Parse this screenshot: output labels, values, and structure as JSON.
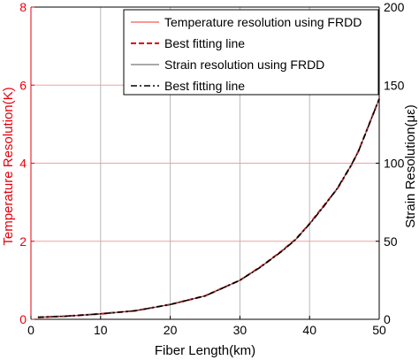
{
  "chart_data": {
    "type": "line",
    "title": "",
    "xlabel": "Fiber Length(km)",
    "ylabel_left": "Temperature Resolution(K)",
    "ylabel_right": "Strain Resolution(με)",
    "xlim": [
      0,
      50
    ],
    "ylim_left": [
      0,
      8
    ],
    "ylim_right": [
      0,
      200
    ],
    "x_ticks": [
      "0",
      "10",
      "20",
      "30",
      "40",
      "50"
    ],
    "y_ticks_left": [
      "0",
      "2",
      "4",
      "6",
      "8"
    ],
    "y_ticks_right": [
      "0",
      "50",
      "100",
      "150",
      "200"
    ],
    "x_tick_values": [
      0,
      10,
      20,
      30,
      40,
      50
    ],
    "y_tick_values_left": [
      0,
      2,
      4,
      6,
      8
    ],
    "y_tick_values_right": [
      0,
      50,
      100,
      150,
      200
    ],
    "grid": true,
    "legend_position": "top-right",
    "colors": {
      "left_axis": "#e8000b",
      "right_axis": "#000000",
      "temp_line": "#f03030",
      "temp_fit": "#dd0000",
      "strain_line": "#555555",
      "strain_fit": "#000000",
      "grid_red": "#f2a0a0",
      "grid_gray": "#b8b8b8"
    },
    "series": [
      {
        "name": "Temperature resolution using FRDD",
        "axis": "left",
        "style": "solid",
        "x": [
          1,
          5,
          10,
          15,
          20,
          25,
          30,
          33,
          36,
          38,
          40,
          42,
          44,
          46,
          47,
          48,
          49,
          50
        ],
        "y": [
          0.05,
          0.08,
          0.14,
          0.22,
          0.38,
          0.6,
          1.0,
          1.35,
          1.75,
          2.05,
          2.45,
          2.9,
          3.35,
          3.95,
          4.3,
          4.75,
          5.2,
          5.65
        ]
      },
      {
        "name": "Best fitting line",
        "axis": "left",
        "style": "dashed",
        "x": [
          1,
          5,
          10,
          15,
          20,
          25,
          30,
          33,
          36,
          38,
          40,
          42,
          44,
          46,
          47,
          48,
          49,
          50
        ],
        "y": [
          0.05,
          0.08,
          0.14,
          0.22,
          0.38,
          0.6,
          1.0,
          1.35,
          1.75,
          2.05,
          2.45,
          2.9,
          3.35,
          3.95,
          4.3,
          4.75,
          5.2,
          5.65
        ]
      },
      {
        "name": "Strain resolution using FRDD",
        "axis": "right",
        "style": "solid",
        "x": [
          1,
          5,
          10,
          15,
          20,
          25,
          30,
          33,
          36,
          38,
          40,
          42,
          44,
          46,
          47,
          48,
          49,
          50
        ],
        "y": [
          1.3,
          2,
          3.5,
          5.5,
          9.5,
          15,
          25,
          33.5,
          43.5,
          51,
          61,
          72,
          84,
          99,
          107.5,
          118.5,
          130,
          141
        ]
      },
      {
        "name": "Best fitting line",
        "axis": "right",
        "style": "dashdot",
        "x": [
          1,
          5,
          10,
          15,
          20,
          25,
          30,
          33,
          36,
          38,
          40,
          42,
          44,
          46,
          47,
          48,
          49,
          50
        ],
        "y": [
          1.3,
          2,
          3.5,
          5.5,
          9.5,
          15,
          25,
          33.5,
          43.5,
          51,
          61,
          72,
          84,
          99,
          107.5,
          118.5,
          130,
          141
        ]
      }
    ]
  }
}
